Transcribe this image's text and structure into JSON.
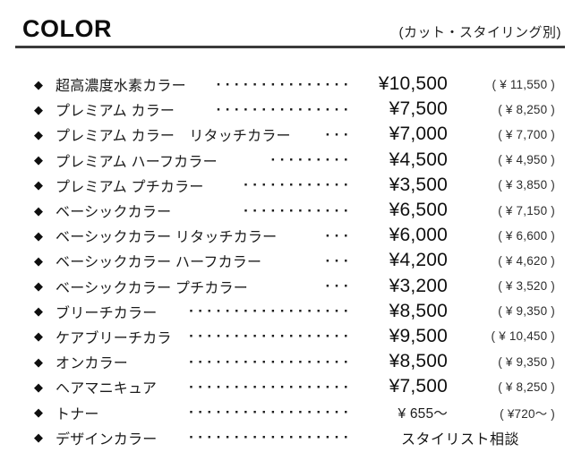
{
  "bullet": "◆",
  "header": {
    "title": "COLOR",
    "note": "(カット・スタイリング別)"
  },
  "rows": [
    {
      "name": "超高濃度水素カラー",
      "leader": "···············",
      "price": "¥10,500",
      "tax_price": "( ¥ 11,550 )"
    },
    {
      "name": "プレミアム カラー",
      "leader": "···············",
      "price": "¥7,500",
      "tax_price": "( ¥ 8,250 )"
    },
    {
      "name": "プレミアム カラー　リタッチカラー",
      "leader": "···",
      "price": "¥7,000",
      "tax_price": "( ¥ 7,700 )"
    },
    {
      "name": "プレミアム ハーフカラー",
      "leader": "·········",
      "price": "¥4,500",
      "tax_price": "( ¥ 4,950 )"
    },
    {
      "name": "プレミアム プチカラー",
      "leader": "············",
      "price": "¥3,500",
      "tax_price": "( ¥ 3,850 )"
    },
    {
      "name": "ベーシックカラー",
      "leader": "············",
      "price": "¥6,500",
      "tax_price": "( ¥ 7,150 )"
    },
    {
      "name": "ベーシックカラー リタッチカラー",
      "leader": "···",
      "price": "¥6,000",
      "tax_price": "( ¥ 6,600 )"
    },
    {
      "name": "ベーシックカラー ハーフカラー",
      "leader": "···",
      "price": "¥4,200",
      "tax_price": "( ¥ 4,620 )"
    },
    {
      "name": "ベーシックカラー プチカラー",
      "leader": "···",
      "price": "¥3,200",
      "tax_price": "( ¥ 3,520 )"
    },
    {
      "name": "ブリーチカラー",
      "leader": "··················",
      "price": "¥8,500",
      "tax_price": "( ¥ 9,350 )"
    },
    {
      "name": "ケアブリーチカラ",
      "leader": "··················",
      "price": "¥9,500",
      "tax_price": "( ¥ 10,450 )"
    },
    {
      "name": "オンカラー",
      "leader": "··················",
      "price": "¥8,500",
      "tax_price": "( ¥ 9,350 )"
    },
    {
      "name": "ヘアマニキュア",
      "leader": "··················",
      "price": "¥7,500",
      "tax_price": "( ¥ 8,250 )"
    },
    {
      "name": "トナー",
      "leader": "··················",
      "price": "¥ 655～",
      "tax_price": "( ¥720～ )"
    },
    {
      "name": "デザインカラー",
      "leader": "··················",
      "note": "スタイリスト相談"
    }
  ]
}
